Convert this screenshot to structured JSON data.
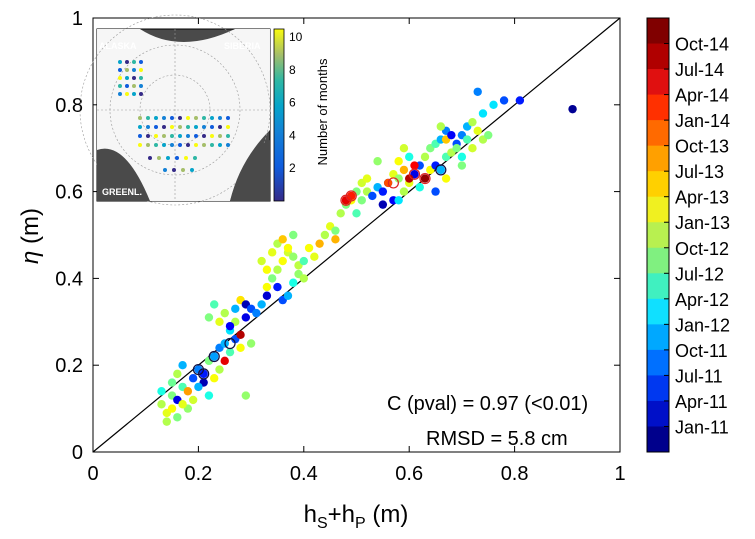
{
  "chart_data": {
    "type": "scatter",
    "xlabel_main": "h",
    "xlabel_sub1": "S",
    "xlabel_plus": "+h",
    "xlabel_sub2": "P",
    "xlabel_unit": " (m)",
    "ylabel_sym": "η",
    "ylabel_unit": " (m)",
    "xlim": [
      0,
      1
    ],
    "ylim": [
      0,
      1
    ],
    "xticks": [
      "0",
      "0.2",
      "0.4",
      "0.6",
      "0.8",
      "1"
    ],
    "yticks": [
      "0",
      "0.2",
      "0.4",
      "0.6",
      "0.8",
      "1"
    ],
    "annotation_corr": "C (pval) = 0.97 (<0.01)",
    "annotation_rmsd": "RMSD = 5.8 cm",
    "reference_line": "1:1",
    "colorbar_labels": [
      "Oct-14",
      "Jul-14",
      "Apr-14",
      "Jan-14",
      "Oct-13",
      "Jul-13",
      "Apr-13",
      "Jan-13",
      "Oct-12",
      "Jul-12",
      "Apr-12",
      "Jan-12",
      "Oct-11",
      "Jul-11",
      "Apr-11",
      "Jan-11"
    ],
    "colorbar_colors": [
      "#800000",
      "#b00000",
      "#e01010",
      "#ff3000",
      "#ff6a00",
      "#ffa000",
      "#ffd000",
      "#f0f020",
      "#b8f050",
      "#80f080",
      "#40f0c0",
      "#10e0ff",
      "#00a8ff",
      "#0070ff",
      "#0038f0",
      "#0010c8",
      "#00008c"
    ],
    "points": [
      [
        0.13,
        0.11,
        0.55
      ],
      [
        0.14,
        0.09,
        0.6
      ],
      [
        0.15,
        0.13,
        0.5
      ],
      [
        0.16,
        0.12,
        0.1
      ],
      [
        0.17,
        0.15,
        0.45
      ],
      [
        0.18,
        0.1,
        0.52
      ],
      [
        0.19,
        0.17,
        0.2
      ],
      [
        0.2,
        0.19,
        0.25
      ],
      [
        0.21,
        0.16,
        0.05
      ],
      [
        0.22,
        0.21,
        0.5
      ],
      [
        0.15,
        0.16,
        0.48
      ],
      [
        0.16,
        0.18,
        0.55
      ],
      [
        0.17,
        0.2,
        0.3
      ],
      [
        0.18,
        0.14,
        0.72
      ],
      [
        0.19,
        0.12,
        0.58
      ],
      [
        0.2,
        0.15,
        0.3
      ],
      [
        0.21,
        0.18,
        0.15
      ],
      [
        0.22,
        0.13,
        0.4
      ],
      [
        0.23,
        0.17,
        0.62
      ],
      [
        0.24,
        0.19,
        0.55
      ],
      [
        0.14,
        0.07,
        0.55
      ],
      [
        0.15,
        0.1,
        0.62
      ],
      [
        0.13,
        0.14,
        0.4
      ],
      [
        0.16,
        0.08,
        0.5
      ],
      [
        0.17,
        0.11,
        0.6
      ],
      [
        0.23,
        0.22,
        0.28
      ],
      [
        0.24,
        0.24,
        0.25
      ],
      [
        0.25,
        0.25,
        0.3
      ],
      [
        0.26,
        0.23,
        0.45
      ],
      [
        0.27,
        0.26,
        0.2
      ],
      [
        0.25,
        0.21,
        0.9
      ],
      [
        0.26,
        0.28,
        0.35
      ],
      [
        0.27,
        0.3,
        0.55
      ],
      [
        0.28,
        0.27,
        0.95
      ],
      [
        0.29,
        0.31,
        0.1
      ],
      [
        0.24,
        0.3,
        0.6
      ],
      [
        0.25,
        0.32,
        0.55
      ],
      [
        0.26,
        0.29,
        0.12
      ],
      [
        0.27,
        0.33,
        0.3
      ],
      [
        0.28,
        0.35,
        0.65
      ],
      [
        0.29,
        0.34,
        0.05
      ],
      [
        0.3,
        0.33,
        0.2
      ],
      [
        0.31,
        0.32,
        0.25
      ],
      [
        0.32,
        0.34,
        0.3
      ],
      [
        0.33,
        0.36,
        0.08
      ],
      [
        0.22,
        0.31,
        0.5
      ],
      [
        0.23,
        0.34,
        0.45
      ],
      [
        0.3,
        0.25,
        0.52
      ],
      [
        0.28,
        0.24,
        0.62
      ],
      [
        0.29,
        0.13,
        0.52
      ],
      [
        0.33,
        0.38,
        0.62
      ],
      [
        0.34,
        0.4,
        0.5
      ],
      [
        0.35,
        0.42,
        0.55
      ],
      [
        0.36,
        0.44,
        0.62
      ],
      [
        0.37,
        0.46,
        0.58
      ],
      [
        0.35,
        0.38,
        0.15
      ],
      [
        0.36,
        0.35,
        0.2
      ],
      [
        0.37,
        0.36,
        0.3
      ],
      [
        0.38,
        0.39,
        0.4
      ],
      [
        0.39,
        0.41,
        0.52
      ],
      [
        0.34,
        0.46,
        0.6
      ],
      [
        0.35,
        0.48,
        0.55
      ],
      [
        0.36,
        0.49,
        0.68
      ],
      [
        0.37,
        0.47,
        0.62
      ],
      [
        0.38,
        0.5,
        0.5
      ],
      [
        0.32,
        0.44,
        0.58
      ],
      [
        0.33,
        0.42,
        0.62
      ],
      [
        0.38,
        0.45,
        0.52
      ],
      [
        0.39,
        0.43,
        0.56
      ],
      [
        0.4,
        0.44,
        0.45
      ],
      [
        0.42,
        0.45,
        0.6
      ],
      [
        0.43,
        0.48,
        0.7
      ],
      [
        0.44,
        0.5,
        0.55
      ],
      [
        0.45,
        0.52,
        0.6
      ],
      [
        0.46,
        0.51,
        0.5
      ],
      [
        0.47,
        0.55,
        0.55
      ],
      [
        0.48,
        0.57,
        0.5
      ],
      [
        0.49,
        0.58,
        0.62
      ],
      [
        0.5,
        0.6,
        0.5
      ],
      [
        0.51,
        0.62,
        0.58
      ],
      [
        0.5,
        0.55,
        0.45
      ],
      [
        0.51,
        0.58,
        0.5
      ],
      [
        0.52,
        0.6,
        0.55
      ],
      [
        0.53,
        0.59,
        0.2
      ],
      [
        0.54,
        0.61,
        0.3
      ],
      [
        0.55,
        0.6,
        0.15
      ],
      [
        0.56,
        0.62,
        0.25
      ],
      [
        0.57,
        0.64,
        0.6
      ],
      [
        0.58,
        0.63,
        0.52
      ],
      [
        0.59,
        0.65,
        0.7
      ],
      [
        0.48,
        0.58,
        0.9
      ],
      [
        0.49,
        0.59,
        0.85
      ],
      [
        0.55,
        0.57,
        0.05
      ],
      [
        0.57,
        0.58,
        0.12
      ],
      [
        0.56,
        0.62,
        0.8
      ],
      [
        0.58,
        0.58,
        0.35
      ],
      [
        0.59,
        0.6,
        0.55
      ],
      [
        0.6,
        0.62,
        0.6
      ],
      [
        0.61,
        0.64,
        0.1
      ],
      [
        0.62,
        0.66,
        0.2
      ],
      [
        0.63,
        0.68,
        0.55
      ],
      [
        0.64,
        0.7,
        0.5
      ],
      [
        0.65,
        0.71,
        0.45
      ],
      [
        0.66,
        0.72,
        0.3
      ],
      [
        0.67,
        0.74,
        0.25
      ],
      [
        0.6,
        0.63,
        0.95
      ],
      [
        0.61,
        0.66,
        0.88
      ],
      [
        0.63,
        0.63,
        0.98
      ],
      [
        0.64,
        0.65,
        0.62
      ],
      [
        0.62,
        0.61,
        0.4
      ],
      [
        0.65,
        0.66,
        0.15
      ],
      [
        0.66,
        0.65,
        0.3
      ],
      [
        0.67,
        0.68,
        0.45
      ],
      [
        0.68,
        0.69,
        0.55
      ],
      [
        0.69,
        0.71,
        0.2
      ],
      [
        0.7,
        0.73,
        0.25
      ],
      [
        0.71,
        0.75,
        0.3
      ],
      [
        0.72,
        0.76,
        0.55
      ],
      [
        0.73,
        0.74,
        0.6
      ],
      [
        0.74,
        0.78,
        0.35
      ],
      [
        0.66,
        0.75,
        0.55
      ],
      [
        0.67,
        0.72,
        0.68
      ],
      [
        0.68,
        0.73,
        0.12
      ],
      [
        0.69,
        0.7,
        0.5
      ],
      [
        0.7,
        0.68,
        0.4
      ],
      [
        0.72,
        0.7,
        0.58
      ],
      [
        0.73,
        0.83,
        0.25
      ],
      [
        0.76,
        0.8,
        0.35
      ],
      [
        0.78,
        0.81,
        0.2
      ],
      [
        0.81,
        0.81,
        0.15
      ],
      [
        0.91,
        0.79,
        0.02
      ],
      [
        0.65,
        0.6,
        0.2
      ],
      [
        0.67,
        0.63,
        0.62
      ],
      [
        0.7,
        0.66,
        0.5
      ],
      [
        0.71,
        0.72,
        0.45
      ],
      [
        0.4,
        0.4,
        0.55
      ],
      [
        0.41,
        0.47,
        0.62
      ],
      [
        0.46,
        0.49,
        0.7
      ],
      [
        0.52,
        0.63,
        0.6
      ],
      [
        0.54,
        0.67,
        0.52
      ],
      [
        0.58,
        0.67,
        0.62
      ],
      [
        0.59,
        0.7,
        0.58
      ],
      [
        0.6,
        0.68,
        0.4
      ],
      [
        0.74,
        0.72,
        0.55
      ],
      [
        0.75,
        0.73,
        0.5
      ]
    ]
  },
  "inset": {
    "label_alaska": "ALASKA",
    "label_siberia": "SIBERIA",
    "label_greenland": "GREENL.",
    "colorbar_title": "Number of months",
    "colorbar_ticks": [
      "10",
      "8",
      "6",
      "4",
      "2"
    ]
  }
}
